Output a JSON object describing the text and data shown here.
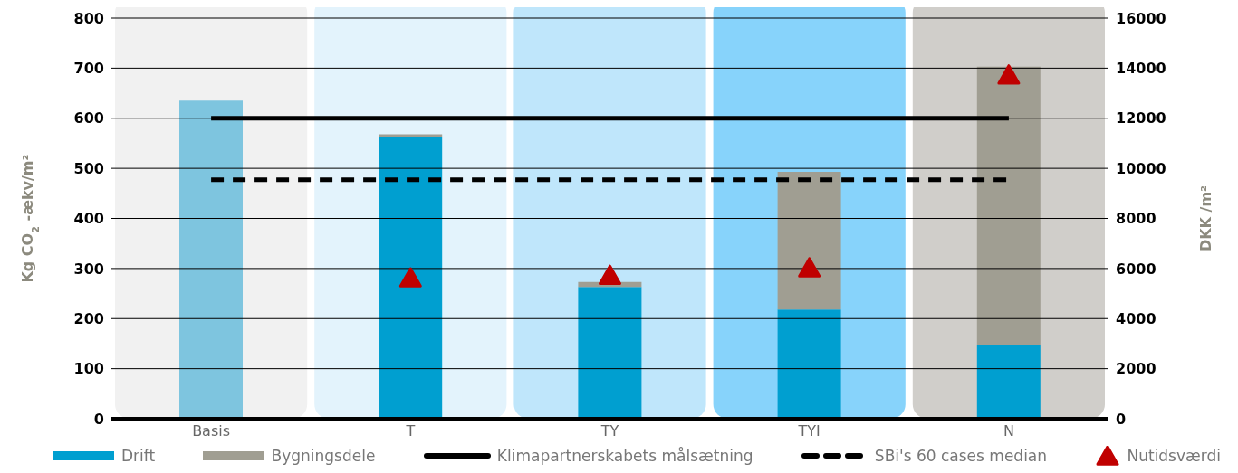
{
  "chart_data": {
    "type": "bar",
    "stacked": true,
    "categories": [
      "Basis",
      "T",
      "TY",
      "TYI",
      "N"
    ],
    "ylabel": "Kg CO$_{2}$ -ækv/m²",
    "y2label": "DKK /m²",
    "ylim": [
      0,
      800
    ],
    "yticks": [
      0,
      100,
      200,
      300,
      400,
      500,
      600,
      700,
      800
    ],
    "y2lim": [
      0,
      16000
    ],
    "y2ticks": [
      0,
      2000,
      4000,
      6000,
      8000,
      10000,
      12000,
      14000,
      16000
    ],
    "grid": "y",
    "legend": "bottom",
    "bands": [
      {
        "axis": "x",
        "from": "Basis",
        "to": "Basis",
        "color": "#f1f1f1"
      },
      {
        "axis": "x",
        "from": "T",
        "to": "T",
        "color": "#e3f3fc"
      },
      {
        "axis": "x",
        "from": "TY",
        "to": "TY",
        "color": "#bfe6fb"
      },
      {
        "axis": "x",
        "from": "TYI",
        "to": "TYI",
        "color": "#87d3fb"
      },
      {
        "axis": "x",
        "from": "N",
        "to": "N",
        "color": "#d0ceca"
      }
    ],
    "series": [
      {
        "color": "#7ec5df",
        "values": [
          635,
          null,
          null,
          null,
          null
        ]
      },
      {
        "name": "Drift",
        "color": "#009fd0",
        "values": [
          null,
          563,
          263,
          218,
          148
        ]
      },
      {
        "name": "Bygningsdele",
        "color": "#a09e92",
        "values": [
          null,
          5,
          10,
          275,
          555
        ]
      },
      {
        "name": "Klimapartnerskabets målsætning",
        "type": "line",
        "color": "#000000",
        "line_style": "solid",
        "marker": "none",
        "values": [
          600,
          600,
          600,
          600,
          600
        ]
      },
      {
        "name": "SBi's 60 cases median",
        "type": "line",
        "color": "#000000",
        "line_style": "dashed",
        "marker": "none",
        "values": [
          477,
          477,
          477,
          477,
          477
        ]
      },
      {
        "name": "Nutidsværdi",
        "type": "scatter",
        "axis": "y2",
        "marker": "triangle",
        "color": "#c00000",
        "x": [
          "T",
          "TY",
          "TYI",
          "N"
        ],
        "values": [
          5600,
          5700,
          6000,
          13700
        ]
      }
    ]
  }
}
